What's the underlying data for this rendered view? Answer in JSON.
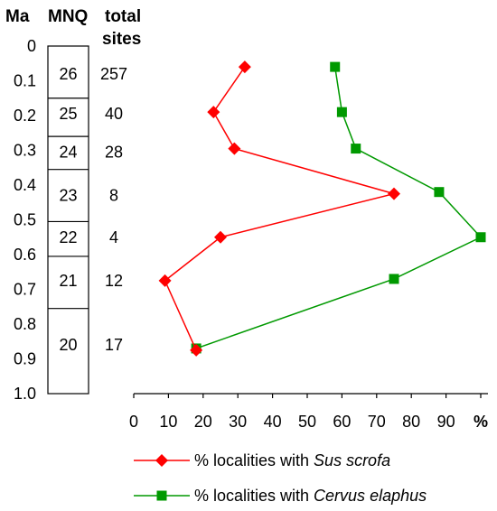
{
  "chart_data": {
    "type": "line",
    "headers": {
      "ma": "Ma",
      "mnq": "MNQ",
      "total_sites_line1": "total",
      "total_sites_line2": "sites"
    },
    "y_axis": {
      "label": "Ma",
      "ticks": [
        "0",
        "0.1",
        "0.2",
        "0.3",
        "0.4",
        "0.5",
        "0.6",
        "0.7",
        "0.8",
        "0.9",
        "1.0"
      ],
      "range": [
        0,
        1.0
      ],
      "direction": "down"
    },
    "x_axis": {
      "unit": "%",
      "ticks": [
        "0",
        "10",
        "20",
        "30",
        "40",
        "50",
        "60",
        "70",
        "80",
        "90"
      ],
      "range": [
        0,
        100
      ]
    },
    "zones": [
      {
        "mnq": "26",
        "start": 0.0,
        "end": 0.15,
        "label_y": 0.08,
        "total_sites": "257"
      },
      {
        "mnq": "25",
        "start": 0.15,
        "end": 0.26,
        "label_y": 0.195,
        "total_sites": "40"
      },
      {
        "mnq": "24",
        "start": 0.26,
        "end": 0.355,
        "label_y": 0.305,
        "total_sites": "28"
      },
      {
        "mnq": "23",
        "start": 0.355,
        "end": 0.505,
        "label_y": 0.43,
        "total_sites": "8"
      },
      {
        "mnq": "22",
        "start": 0.505,
        "end": 0.605,
        "label_y": 0.55,
        "total_sites": "4"
      },
      {
        "mnq": "21",
        "start": 0.605,
        "end": 0.755,
        "label_y": 0.675,
        "total_sites": "12"
      },
      {
        "mnq": "20",
        "start": 0.755,
        "end": 1.0,
        "label_y": 0.86,
        "total_sites": "17"
      }
    ],
    "series": [
      {
        "name": "% localities with Sus scrofa",
        "legend_prefix": "% localities with ",
        "legend_species": "Sus scrofa",
        "color": "#ff0000",
        "marker": "diamond",
        "points": [
          {
            "x": 32,
            "y": 0.06
          },
          {
            "x": 23,
            "y": 0.19
          },
          {
            "x": 29,
            "y": 0.295
          },
          {
            "x": 75,
            "y": 0.425
          },
          {
            "x": 25,
            "y": 0.55
          },
          {
            "x": 9,
            "y": 0.675
          },
          {
            "x": 18,
            "y": 0.875
          }
        ]
      },
      {
        "name": "% localities with Cervus elaphus",
        "legend_prefix": "% localities with ",
        "legend_species": "Cervus elaphus",
        "color": "#009900",
        "marker": "square",
        "points": [
          {
            "x": 58,
            "y": 0.06
          },
          {
            "x": 60,
            "y": 0.19
          },
          {
            "x": 64,
            "y": 0.295
          },
          {
            "x": 88,
            "y": 0.42
          },
          {
            "x": 100,
            "y": 0.55
          },
          {
            "x": 75,
            "y": 0.67
          },
          {
            "x": 18,
            "y": 0.87
          }
        ]
      }
    ]
  }
}
